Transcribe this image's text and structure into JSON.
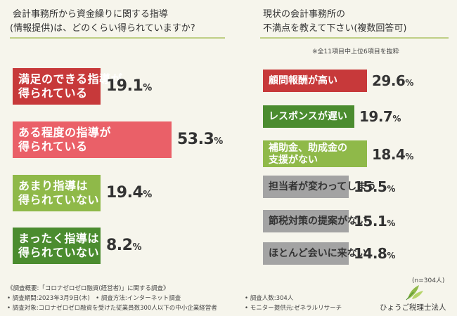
{
  "colors": {
    "deep_red": "#c7393a",
    "salmon": "#ea6068",
    "light_green": "#8fb949",
    "dark_green": "#4b8c2f",
    "gray": "#a3a3a3",
    "underline": "#bfcf86",
    "value_text": "#333333"
  },
  "left_panel": {
    "title_line1": "会計事務所から資金繰りに関する指導",
    "title_line2": "(情報提供)は、どのくらい得られていますか?"
  },
  "right_panel": {
    "title_line1": "現状の会計事務所の",
    "title_line2": "不満点を教えて下さい(複数回答可)",
    "note": "※全11項目中上位6項目を抜粋",
    "sample_size": "(n=304人)"
  },
  "chart_data": [
    {
      "type": "bar",
      "orientation": "horizontal",
      "title": "会計事務所から資金繰りに関する指導(情報提供)は、どのくらい得られていますか?",
      "categories": [
        [
          "満足のできる指導が",
          "得られている"
        ],
        [
          "ある程度の指導が",
          "得られている"
        ],
        [
          "あまり指導は",
          "得られていない"
        ],
        [
          "まったく指導は",
          "得られていない"
        ]
      ],
      "values": [
        19.1,
        53.3,
        19.4,
        8.2
      ],
      "value_labels": [
        "19.1",
        "53.3",
        "19.4",
        "8.2"
      ],
      "unit": "%",
      "colors": [
        "#c7393a",
        "#ea6068",
        "#8fb949",
        "#4b8c2f"
      ],
      "xlim": [
        0,
        60
      ]
    },
    {
      "type": "bar",
      "orientation": "horizontal",
      "title": "現状の会計事務所の不満点を教えて下さい(複数回答可)",
      "categories": [
        [
          "顧問報酬が高い"
        ],
        [
          "レスポンスが遅い"
        ],
        [
          "補助金、助成金の",
          "支援がない"
        ],
        [
          "担当者が変わってしまう"
        ],
        [
          "節税対策の提案がない"
        ],
        [
          "ほとんど会いに来ない"
        ]
      ],
      "values": [
        29.6,
        19.7,
        18.4,
        15.5,
        15.1,
        14.8
      ],
      "value_labels": [
        "29.6",
        "19.7",
        "18.4",
        "15.5",
        "15.1",
        "14.8"
      ],
      "unit": "%",
      "colors": [
        "#c7393a",
        "#4b8c2f",
        "#8fb949",
        "#a3a3a3",
        "#a3a3a3",
        "#a3a3a3"
      ],
      "label_colors": [
        "#ffffff",
        "#ffffff",
        "#ffffff",
        "#333333",
        "#333333",
        "#333333"
      ],
      "xlim": [
        0,
        30
      ]
    }
  ],
  "footer": {
    "line1": "《調査概要:「コロナゼロゼロ融資(経営者)」に関する調査》",
    "line2": "• 調査期間:2023年3月9日(木)　• 調査方法:インターネット調査",
    "line3": "• 調査対象:コロナゼロゼロ融資を受けた従業員数300人以下の中小企業経営者",
    "line4": "• 調査人数:304人",
    "line5": "• モニター提供元:ゼネラルリサーチ"
  },
  "logo": {
    "name": "ひょうご税理士法人"
  }
}
